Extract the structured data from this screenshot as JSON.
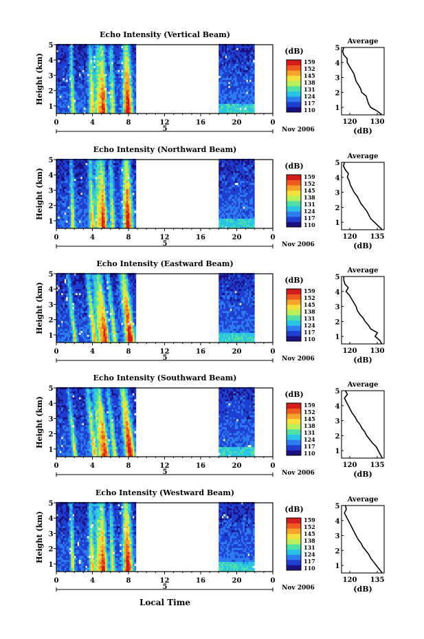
{
  "shared": {
    "ylabel": "Height (km)",
    "y_ticks": [
      "1",
      "2",
      "3",
      "4",
      "5"
    ],
    "x_ticks": [
      "0",
      "4",
      "8",
      "12",
      "16",
      "20",
      "0"
    ],
    "date_day": "5",
    "date_label": "Nov 2006",
    "colorbar_title": "(dB)",
    "colorbar_ticks": [
      "159",
      "152",
      "145",
      "138",
      "131",
      "124",
      "117",
      "110"
    ],
    "colors": [
      "#1a1080",
      "#1f3fd1",
      "#2c7cf2",
      "#29c3e6",
      "#4fe0a6",
      "#b8f05a",
      "#f4e03a",
      "#f6a52a",
      "#ef5a1e",
      "#d51c1c"
    ],
    "profile_title": "Average",
    "profile_xlabel": "(dB)",
    "xlabel": "Local Time"
  },
  "chart_data": [
    {
      "type": "heatmap",
      "title": "Echo Intensity (Vertical Beam)",
      "ylabel": "Height (km)",
      "xlabel": "",
      "x_range_hours": [
        0,
        24
      ],
      "y_range_km": [
        0.5,
        5
      ],
      "data_coverage_hours": [
        [
          0,
          8.7
        ],
        [
          18,
          21.8
        ]
      ],
      "colorbar_range_db": [
        110,
        159
      ],
      "profile": {
        "title": "Average",
        "xlabel": "(dB)",
        "x_ticks": [
          "120",
          "130"
        ],
        "y_ticks": [
          "1",
          "2",
          "3",
          "4",
          "5"
        ],
        "xlim": [
          115,
          134
        ],
        "heights_km": [
          0.5,
          0.75,
          1.0,
          1.25,
          1.5,
          1.75,
          2.0,
          2.25,
          2.5,
          2.75,
          3.0,
          3.25,
          3.5,
          3.75,
          4.0,
          4.25,
          4.5,
          4.75,
          5.0
        ],
        "values_db": [
          133,
          131,
          128,
          127,
          126.5,
          126,
          124,
          123.5,
          122.5,
          121.5,
          121,
          120.5,
          119.5,
          118.5,
          117.5,
          117.5,
          116,
          115.5,
          116
        ]
      }
    },
    {
      "type": "heatmap",
      "title": "Echo Intensity (Northward Beam)",
      "ylabel": "Height (km)",
      "xlabel": "",
      "x_range_hours": [
        0,
        24
      ],
      "y_range_km": [
        0.5,
        5
      ],
      "data_coverage_hours": [
        [
          0,
          8.7
        ],
        [
          18,
          21.8
        ]
      ],
      "colorbar_range_db": [
        110,
        159
      ],
      "profile": {
        "title": "Average",
        "xlabel": "(dB)",
        "x_ticks": [
          "120",
          "135"
        ],
        "y_ticks": [
          "1",
          "2",
          "3",
          "4",
          "5"
        ],
        "xlim": [
          114,
          136
        ],
        "heights_km": [
          0.5,
          0.75,
          1.0,
          1.25,
          1.5,
          1.75,
          2.0,
          2.25,
          2.5,
          2.75,
          3.0,
          3.25,
          3.5,
          3.75,
          4.0,
          4.25,
          4.5,
          4.75,
          5.0
        ],
        "values_db": [
          135,
          133,
          131,
          129,
          128,
          127,
          125.5,
          124,
          123,
          122,
          120.5,
          119.5,
          118.5,
          118,
          117,
          117.5,
          116,
          115,
          115.5
        ]
      }
    },
    {
      "type": "heatmap",
      "title": "Echo Intensity (Eastward Beam)",
      "ylabel": "Height (km)",
      "xlabel": "",
      "x_range_hours": [
        0,
        24
      ],
      "y_range_km": [
        0.5,
        5
      ],
      "data_coverage_hours": [
        [
          0,
          8.7
        ],
        [
          18,
          21.8
        ]
      ],
      "colorbar_range_db": [
        110,
        159
      ],
      "profile": {
        "title": "Average",
        "xlabel": "(dB)",
        "x_ticks": [
          "120",
          "130"
        ],
        "y_ticks": [
          "1",
          "2",
          "3",
          "4",
          "5"
        ],
        "xlim": [
          115,
          134
        ],
        "heights_km": [
          0.5,
          0.75,
          1.0,
          1.25,
          1.5,
          1.75,
          2.0,
          2.25,
          2.5,
          2.75,
          3.0,
          3.25,
          3.5,
          3.75,
          4.0,
          4.25,
          4.5,
          4.75,
          5.0
        ],
        "values_db": [
          133,
          132,
          130,
          131,
          128,
          127,
          125.5,
          124.5,
          123,
          122,
          121.5,
          120.5,
          119.5,
          118.5,
          117,
          118,
          116.5,
          116,
          116
        ]
      }
    },
    {
      "type": "heatmap",
      "title": "Echo Intensity (Southward Beam)",
      "ylabel": "Height (km)",
      "xlabel": "",
      "x_range_hours": [
        0,
        24
      ],
      "y_range_km": [
        0.5,
        5
      ],
      "data_coverage_hours": [
        [
          0,
          8.7
        ],
        [
          18,
          21.8
        ]
      ],
      "colorbar_range_db": [
        110,
        159
      ],
      "profile": {
        "title": "Average",
        "xlabel": "(dB)",
        "x_ticks": [
          "120",
          "135"
        ],
        "y_ticks": [
          "1",
          "2",
          "3",
          "4",
          "5"
        ],
        "xlim": [
          114,
          136
        ],
        "heights_km": [
          0.5,
          0.75,
          1.0,
          1.25,
          1.5,
          1.75,
          2.0,
          2.25,
          2.5,
          2.75,
          3.0,
          3.25,
          3.5,
          3.75,
          4.0,
          4.25,
          4.5,
          4.75,
          5.0
        ],
        "values_db": [
          135,
          134,
          133,
          132,
          130,
          128.5,
          127,
          126,
          124.5,
          123.5,
          122,
          121,
          119.5,
          118.5,
          117.5,
          116.5,
          115.5,
          117,
          116
        ]
      }
    },
    {
      "type": "heatmap",
      "title": "Echo Intensity (Westward Beam)",
      "ylabel": "Height (km)",
      "xlabel": "Local Time",
      "x_range_hours": [
        0,
        24
      ],
      "y_range_km": [
        0.5,
        5
      ],
      "data_coverage_hours": [
        [
          0,
          8.7
        ],
        [
          18,
          21.8
        ]
      ],
      "colorbar_range_db": [
        110,
        159
      ],
      "profile": {
        "title": "Average",
        "xlabel": "(dB)",
        "x_ticks": [
          "120",
          "135"
        ],
        "y_ticks": [
          "1",
          "2",
          "3",
          "4",
          "5"
        ],
        "xlim": [
          114,
          136
        ],
        "heights_km": [
          0.5,
          0.75,
          1.0,
          1.25,
          1.5,
          1.75,
          2.0,
          2.25,
          2.5,
          2.75,
          3.0,
          3.25,
          3.5,
          3.75,
          4.0,
          4.25,
          4.5,
          4.75,
          5.0
        ],
        "values_db": [
          135,
          133.5,
          132,
          130.5,
          129,
          128,
          126.5,
          125,
          124,
          122.5,
          121.5,
          120.5,
          119.5,
          118.5,
          117.5,
          116.5,
          115.5,
          116.5,
          116
        ]
      }
    }
  ]
}
